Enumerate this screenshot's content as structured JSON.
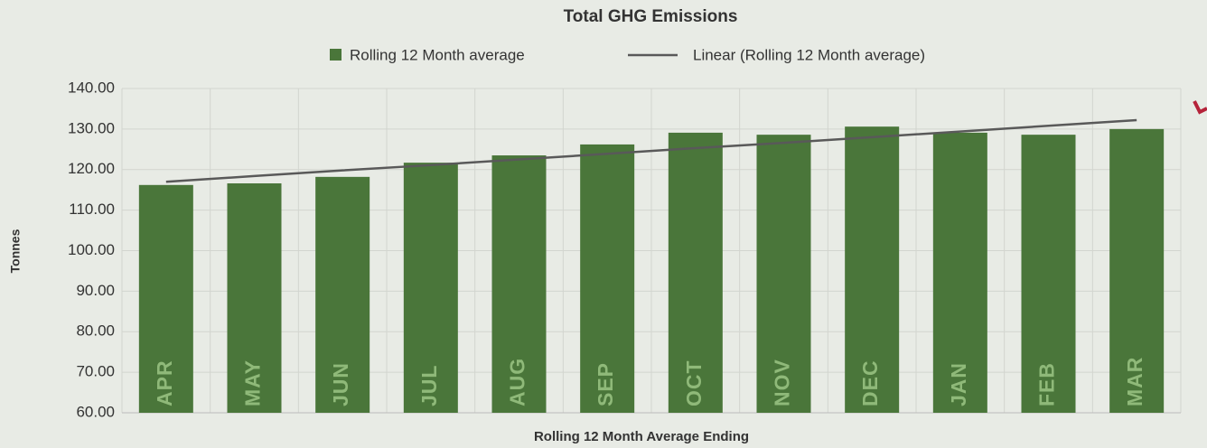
{
  "chart_data": {
    "type": "bar",
    "title": "Total GHG Emissions",
    "x_label": "Rolling 12 Month Average Ending",
    "y_label": "Tonnes",
    "categories": [
      "APR",
      "MAY",
      "JUN",
      "JUL",
      "AUG",
      "SEP",
      "OCT",
      "NOV",
      "DEC",
      "JAN",
      "FEB",
      "MAR"
    ],
    "series": [
      {
        "name": "Rolling 12 Month average",
        "type": "bar",
        "color": "#4a763a",
        "values": [
          116.2,
          116.6,
          118.2,
          121.7,
          123.5,
          126.2,
          129.1,
          128.6,
          130.6,
          129.1,
          128.6,
          130.0
        ]
      },
      {
        "name": "Linear (Rolling 12 Month average)",
        "type": "line",
        "color": "#595959",
        "values": [
          117.0,
          118.4,
          119.8,
          121.1,
          122.5,
          123.9,
          125.3,
          126.6,
          128.0,
          129.4,
          130.8,
          132.2
        ]
      }
    ],
    "ylim": [
      60,
      140
    ],
    "yticks": [
      {
        "value": 60,
        "label": "60.00"
      },
      {
        "value": 70,
        "label": "70.00"
      },
      {
        "value": 80,
        "label": "80.00"
      },
      {
        "value": 90,
        "label": "90.00"
      },
      {
        "value": 100,
        "label": "100.00"
      },
      {
        "value": 110,
        "label": "110.00"
      },
      {
        "value": 120,
        "label": "120.00"
      },
      {
        "value": 130,
        "label": "130.00"
      },
      {
        "value": 140,
        "label": "140.00"
      }
    ],
    "grid": true
  }
}
